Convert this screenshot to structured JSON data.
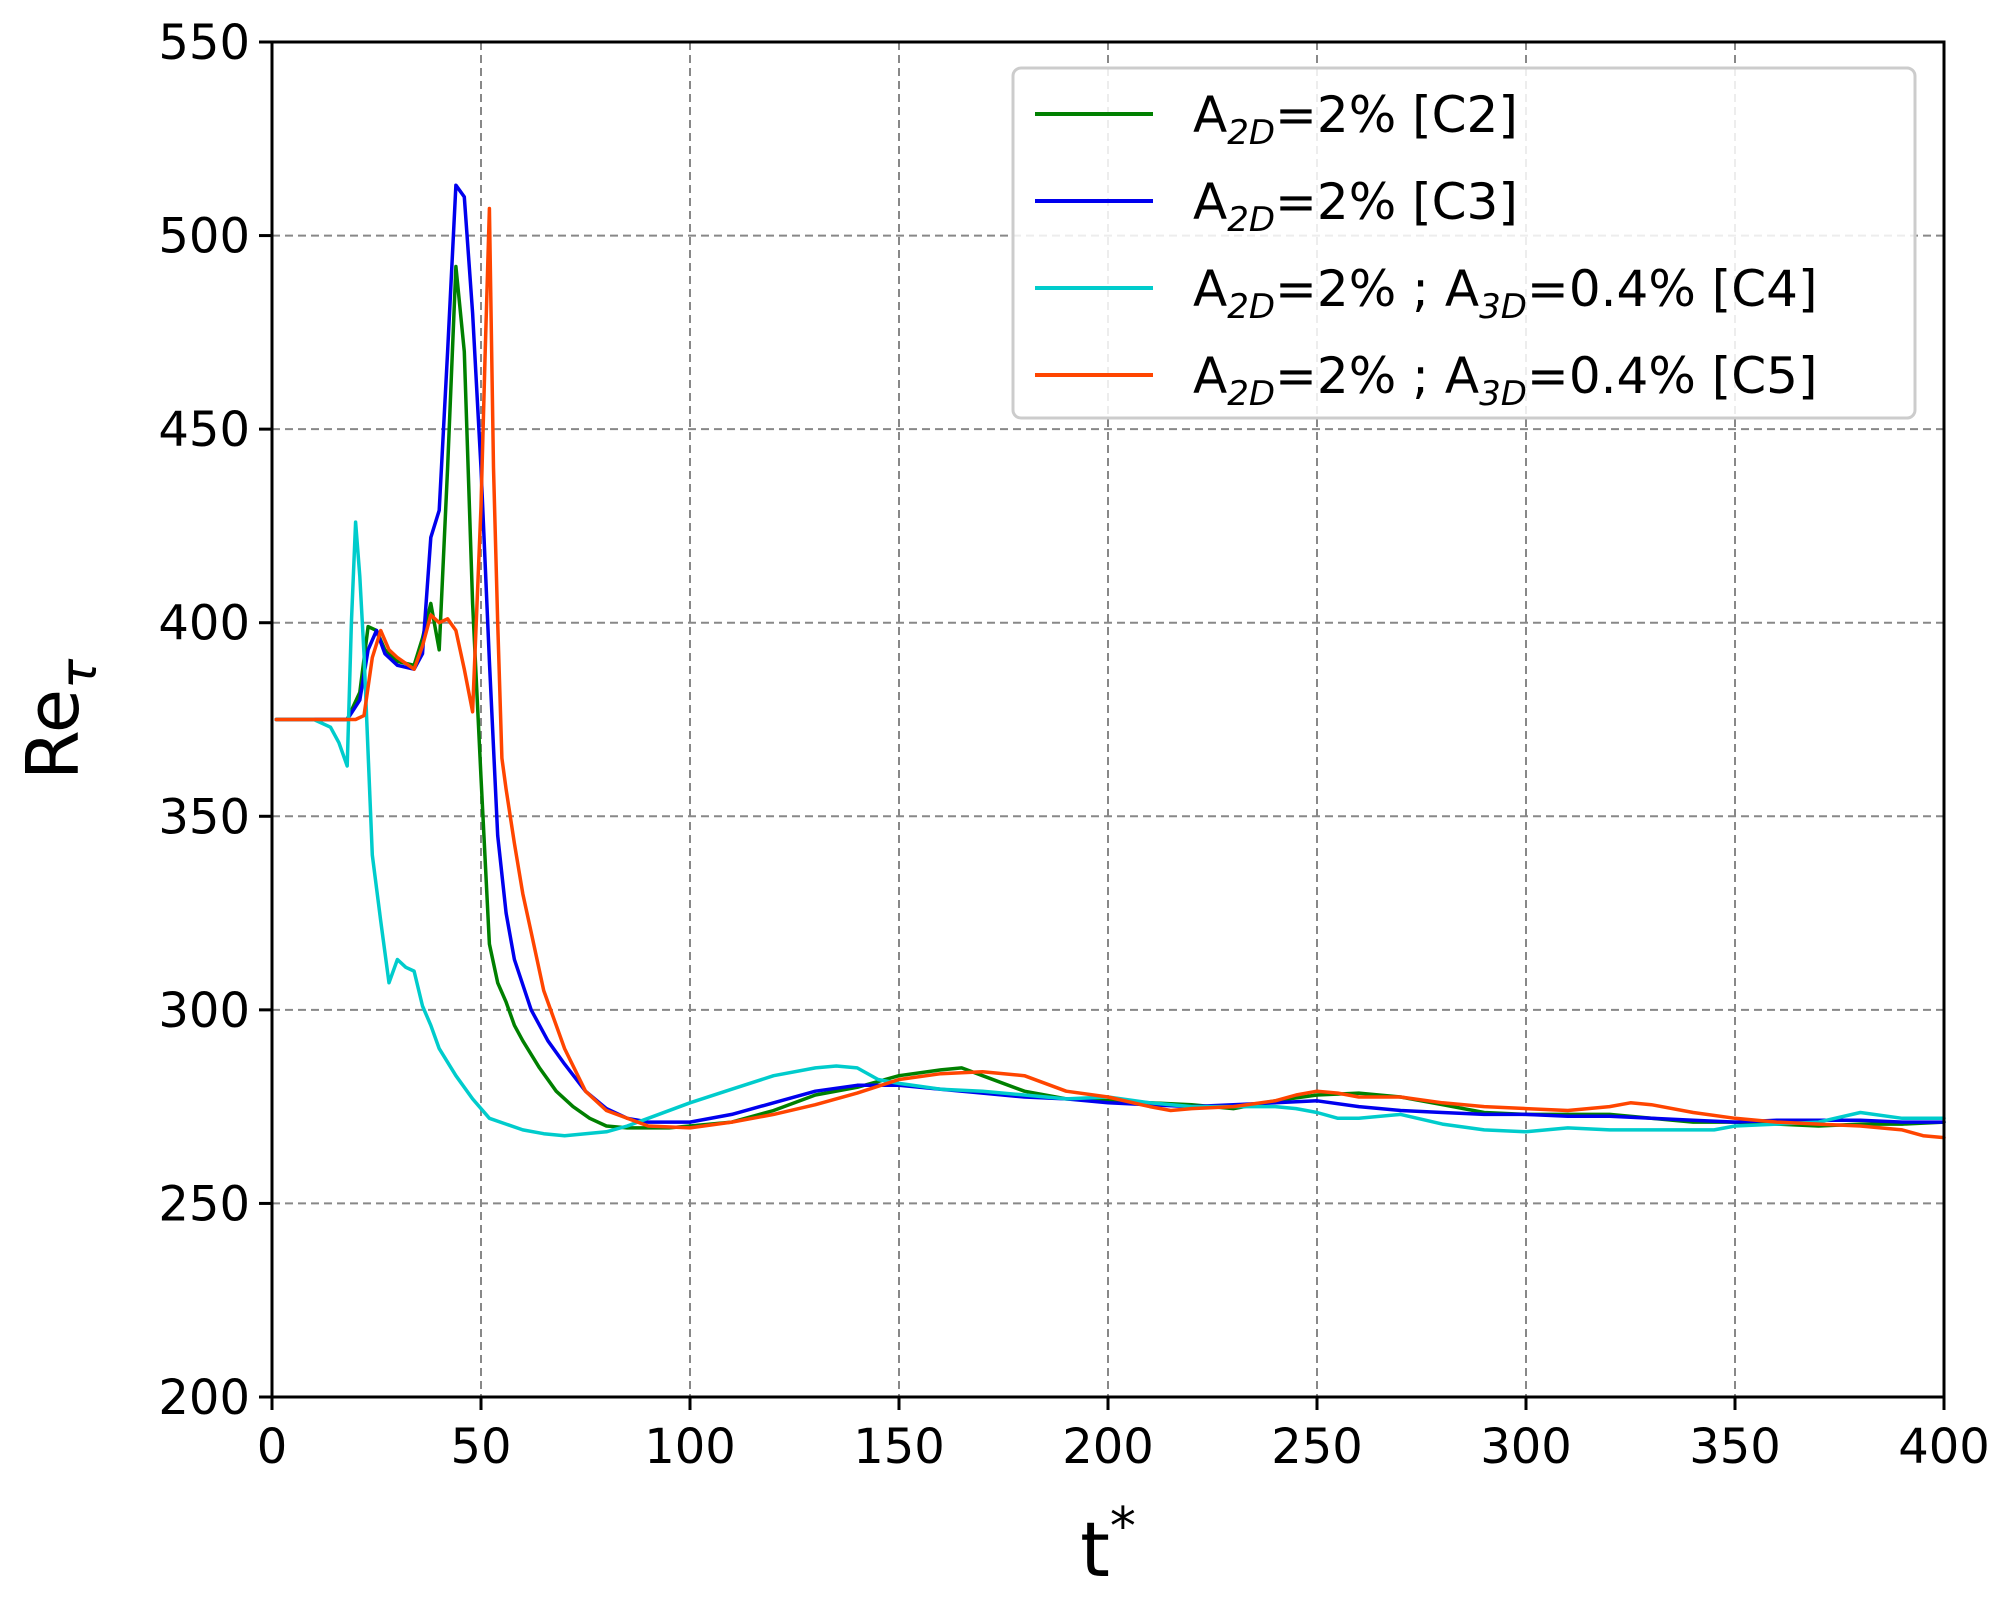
{
  "chart_data": {
    "type": "line",
    "xlabel": "t",
    "xlabel_superscript": "*",
    "ylabel": "Re",
    "ylabel_subscript": "τ",
    "xlim": [
      0,
      400
    ],
    "ylim": [
      200,
      550
    ],
    "xticks": [
      0,
      50,
      100,
      150,
      200,
      250,
      300,
      350,
      400
    ],
    "yticks": [
      200,
      250,
      300,
      350,
      400,
      450,
      500,
      550
    ],
    "grid": true,
    "legend_position": "top-right",
    "series": [
      {
        "name": "A2D=2% [C2]",
        "legend": {
          "a1": "A",
          "s1": "2D",
          "r1": "=2% [C2]",
          "a2": "",
          "s2": "",
          "r2": ""
        },
        "color": "#008000",
        "x": [
          1,
          10,
          18,
          21,
          23,
          25,
          27,
          30,
          34,
          36,
          38,
          40,
          42,
          44,
          46,
          48,
          50,
          52,
          54,
          56,
          58,
          60,
          64,
          68,
          72,
          76,
          80,
          85,
          90,
          95,
          100,
          110,
          120,
          130,
          140,
          150,
          160,
          165,
          170,
          180,
          190,
          200,
          210,
          220,
          230,
          240,
          250,
          260,
          270,
          280,
          290,
          300,
          310,
          320,
          330,
          340,
          350,
          360,
          370,
          380,
          390,
          400
        ],
        "y": [
          375,
          375,
          375,
          382,
          399,
          398,
          393,
          390,
          389,
          396,
          405,
          393,
          440,
          492,
          470,
          405,
          360,
          317,
          307,
          302,
          296,
          292,
          285,
          279,
          275,
          272,
          270,
          269.5,
          269.5,
          269.5,
          270,
          271,
          274,
          278,
          280,
          283,
          284.5,
          285,
          283,
          279,
          277,
          276.5,
          276,
          275.5,
          274.5,
          276.5,
          278,
          278.5,
          277.5,
          275.5,
          273.5,
          273,
          273,
          273,
          272,
          271,
          271,
          270.5,
          270,
          270.5,
          270.5,
          271
        ]
      },
      {
        "name": "A2D=2% [C3]",
        "legend": {
          "a1": "A",
          "s1": "2D",
          "r1": "=2% [C3]",
          "a2": "",
          "s2": "",
          "r2": ""
        },
        "color": "#0000ee",
        "x": [
          1,
          10,
          18,
          21,
          23,
          25,
          27,
          30,
          34,
          36,
          38,
          40,
          42,
          44,
          46,
          48,
          50,
          52,
          54,
          56,
          58,
          62,
          66,
          70,
          75,
          80,
          85,
          90,
          100,
          110,
          120,
          130,
          140,
          150,
          160,
          170,
          180,
          190,
          200,
          210,
          220,
          230,
          240,
          250,
          260,
          270,
          280,
          290,
          300,
          310,
          320,
          330,
          340,
          350,
          360,
          370,
          380,
          390,
          400
        ],
        "y": [
          375,
          375,
          375,
          380,
          393,
          398,
          392,
          389,
          388,
          392,
          422,
          429,
          470,
          513,
          510,
          480,
          440,
          390,
          345,
          325,
          313,
          300,
          292,
          286,
          279,
          274.5,
          272,
          271,
          271,
          273,
          276,
          279,
          280.5,
          280.5,
          279.5,
          278.5,
          277.5,
          277,
          276,
          275.5,
          275,
          275.5,
          276,
          276.5,
          275,
          274,
          273.5,
          273,
          273,
          272.5,
          272.5,
          272,
          271.5,
          271,
          271.5,
          271.5,
          271.5,
          271,
          271
        ]
      },
      {
        "name": "A2D=2% ; A3D=0.4% [C4]",
        "legend": {
          "a1": "A",
          "s1": "2D",
          "r1": "=2% ; ",
          "a2": "A",
          "s2": "3D",
          "r2": "=0.4% [C4]"
        },
        "color": "#00cccc",
        "x": [
          1,
          10,
          14,
          16,
          18,
          19,
          20,
          21,
          22,
          24,
          26,
          28,
          30,
          32,
          34,
          36,
          38,
          40,
          44,
          48,
          52,
          56,
          60,
          65,
          70,
          75,
          80,
          85,
          90,
          100,
          110,
          120,
          130,
          135,
          140,
          145,
          150,
          160,
          170,
          180,
          190,
          200,
          210,
          220,
          230,
          240,
          245,
          250,
          255,
          260,
          270,
          280,
          290,
          300,
          310,
          320,
          330,
          340,
          345,
          350,
          360,
          370,
          380,
          390,
          400
        ],
        "y": [
          375,
          375,
          373,
          369,
          363,
          400,
          426,
          412,
          392,
          340,
          323,
          307,
          313,
          311,
          310,
          301,
          296,
          290,
          283,
          277,
          272,
          270.5,
          269,
          268,
          267.5,
          268,
          268.5,
          270,
          272,
          276,
          279.5,
          283,
          285,
          285.5,
          285,
          282,
          281,
          279.5,
          279,
          278,
          277,
          277.5,
          276,
          275,
          275,
          275,
          274.5,
          273.5,
          272,
          272,
          273,
          270.5,
          269,
          268.5,
          269.5,
          269,
          269,
          269,
          269,
          270,
          270.5,
          271,
          273.5,
          272,
          272
        ]
      },
      {
        "name": "A2D=2% ; A3D=0.4% [C5]",
        "legend": {
          "a1": "A",
          "s1": "2D",
          "r1": "=2% ; ",
          "a2": "A",
          "s2": "3D",
          "r2": "=0.4% [C5]"
        },
        "color": "#ff4500",
        "x": [
          1,
          10,
          18,
          20,
          22,
          24,
          26,
          28,
          30,
          34,
          36,
          38,
          40,
          42,
          44,
          46,
          48,
          50,
          51,
          52,
          53,
          54,
          55,
          56,
          58,
          60,
          62,
          65,
          70,
          75,
          80,
          90,
          100,
          110,
          120,
          130,
          140,
          150,
          160,
          170,
          180,
          190,
          200,
          210,
          215,
          220,
          230,
          240,
          245,
          250,
          255,
          260,
          270,
          280,
          290,
          300,
          310,
          320,
          325,
          330,
          340,
          350,
          360,
          370,
          380,
          390,
          395,
          400
        ],
        "y": [
          375,
          375,
          375,
          375,
          376,
          391,
          398,
          393,
          391,
          388,
          394,
          402,
          400,
          401,
          398,
          388,
          377,
          430,
          470,
          507,
          440,
          400,
          365,
          357,
          343,
          330,
          320,
          305,
          290,
          279,
          274,
          270,
          269.5,
          271,
          273,
          275.5,
          278.5,
          282,
          283.5,
          284,
          283,
          279,
          277.5,
          275,
          274,
          274.5,
          275,
          276.5,
          278,
          279,
          278.5,
          277.5,
          277.5,
          276,
          275,
          274.5,
          274,
          275,
          276,
          275.5,
          273.5,
          272,
          271,
          270.5,
          270,
          269,
          267.5,
          267
        ]
      }
    ]
  }
}
